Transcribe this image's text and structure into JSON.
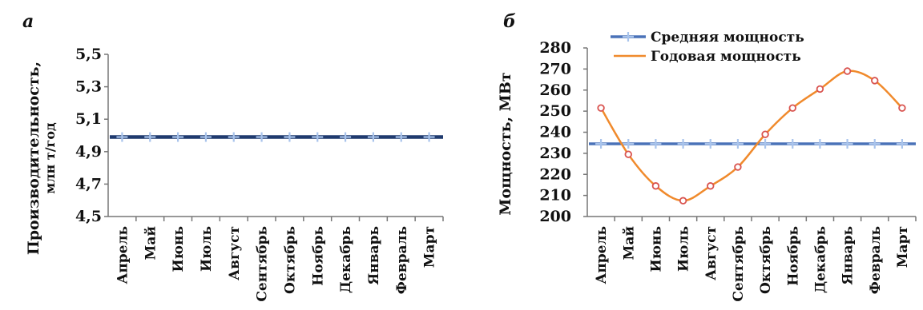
{
  "chart_data": [
    {
      "type": "line",
      "panel_label": "а",
      "ylabel": "Производительность,",
      "ylabel_sub": "млн т/год",
      "ylim": [
        4.5,
        5.5
      ],
      "yticks": [
        "4,5",
        "4,7",
        "4,9",
        "5,1",
        "5,3",
        "5,5"
      ],
      "grid": false,
      "categories": [
        "Апрель",
        "Май",
        "Июнь",
        "Июль",
        "Август",
        "Сентябрь",
        "Октябрь",
        "Ноябрь",
        "Декабрь",
        "Январь",
        "Февраль",
        "Март"
      ],
      "series": [
        {
          "color": "#1f3a6e",
          "values": [
            4.99,
            4.99,
            4.99,
            4.99,
            4.99,
            4.99,
            4.99,
            4.99,
            4.99,
            4.99,
            4.99,
            4.99
          ]
        }
      ]
    },
    {
      "type": "line",
      "panel_label": "б",
      "ylabel": "Мощность, МВт",
      "ylim": [
        200,
        280
      ],
      "yticks": [
        "200",
        "210",
        "220",
        "230",
        "240",
        "250",
        "260",
        "270",
        "280"
      ],
      "grid": false,
      "legend_position": "top",
      "categories": [
        "Апрель",
        "Май",
        "Июнь",
        "Июль",
        "Август",
        "Сентябрь",
        "Октябрь",
        "Ноябрь",
        "Декабрь",
        "Январь",
        "Февраль",
        "Март"
      ],
      "series": [
        {
          "name": "Средняя мощность",
          "color": "#4a72b8",
          "values": [
            234.5,
            234.5,
            234.5,
            234.5,
            234.5,
            234.5,
            234.5,
            234.5,
            234.5,
            234.5,
            234.5,
            234.5
          ]
        },
        {
          "name": "Годовая мощность",
          "color": "#f08a2c",
          "values": [
            251.5,
            229.5,
            214.5,
            207.5,
            214.5,
            223.5,
            239,
            251.5,
            260.5,
            269,
            264.5,
            251.5
          ]
        }
      ]
    }
  ]
}
